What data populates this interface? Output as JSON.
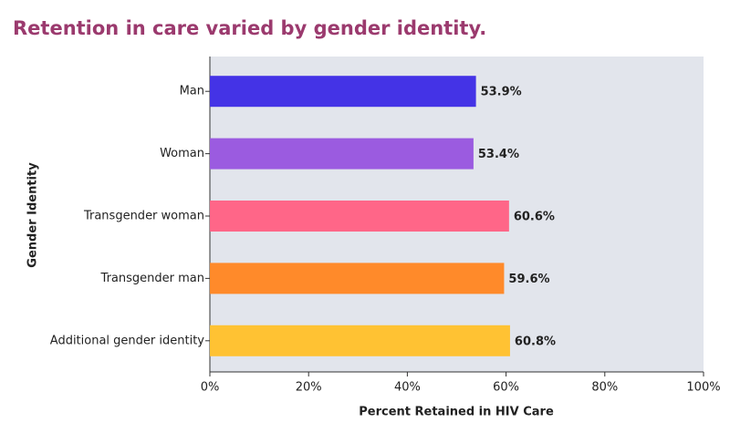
{
  "chart_data": {
    "type": "hbar",
    "title": "Retention in care varied by gender identity.",
    "x_label": "Percent Retained in HIV Care",
    "y_label": "Gender Identity",
    "categories": [
      "Man",
      "Woman",
      "Transgender woman",
      "Transgender man",
      "Additional gender identity"
    ],
    "values": [
      53.9,
      53.4,
      60.6,
      59.6,
      60.8
    ],
    "value_labels": [
      "53.9%",
      "53.4%",
      "60.6%",
      "59.6%",
      "60.8%"
    ],
    "colors": [
      "#4433e6",
      "#9b5be0",
      "#ff6688",
      "#ff8a2a",
      "#ffc233"
    ],
    "xlim": [
      0,
      100
    ],
    "xticks": [
      {
        "value": 0,
        "label": "0%"
      },
      {
        "value": 20,
        "label": "20%"
      },
      {
        "value": 40,
        "label": "40%"
      },
      {
        "value": 60,
        "label": "60%"
      },
      {
        "value": 80,
        "label": "80%"
      },
      {
        "value": 100,
        "label": "100%"
      }
    ]
  }
}
